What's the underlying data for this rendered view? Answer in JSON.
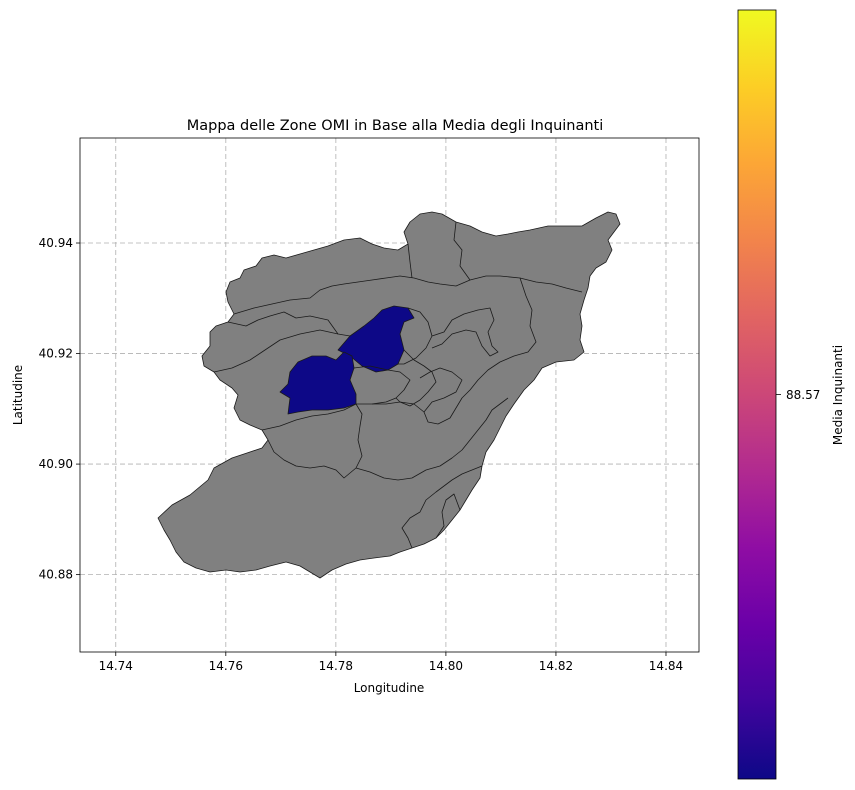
{
  "chart_data": {
    "type": "choropleth-map",
    "title": "Mappa delle Zone OMI in Base alla Media degli Inquinanti",
    "xlabel": "Longitudine",
    "ylabel": "Latitudine",
    "xlim": [
      14.7335,
      14.846
    ],
    "ylim": [
      40.866,
      40.959
    ],
    "x_ticks": [
      14.74,
      14.76,
      14.78,
      14.8,
      14.82,
      14.84
    ],
    "x_tick_labels": [
      "14.74",
      "14.76",
      "14.78",
      "14.80",
      "14.82",
      "14.84"
    ],
    "y_ticks": [
      40.88,
      40.9,
      40.92,
      40.94
    ],
    "y_tick_labels": [
      "40.88",
      "40.90",
      "40.92",
      "40.94"
    ],
    "grid": true,
    "colorbar": {
      "label": "Media Inquinanti",
      "colormap": "plasma",
      "tick_value": 88.57,
      "tick_label": "88.57",
      "tick_fraction": 0.5
    },
    "no_data_color": "#808080",
    "data_color": "#0d0887",
    "zones_with_data": 2
  }
}
